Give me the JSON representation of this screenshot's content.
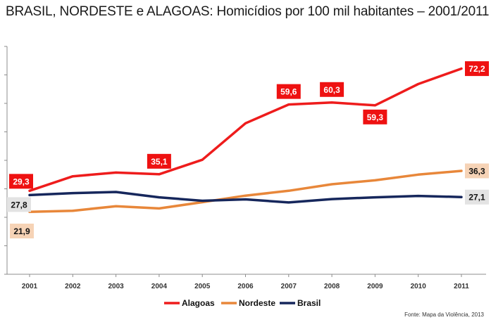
{
  "chart_data": {
    "type": "line",
    "title": "BRASIL, NORDESTE e ALAGOAS: Homicídios por 100 mil habitantes – 2001/2011",
    "source": "Fonte: Mapa da Violência, 2013",
    "categories": [
      "2001",
      "2002",
      "2003",
      "2004",
      "2005",
      "2006",
      "2007",
      "2008",
      "2009",
      "2010",
      "2011"
    ],
    "ylim": [
      0,
      80
    ],
    "grid": false,
    "legend_position": "bottom",
    "series": [
      {
        "name": "Alagoas",
        "color": "#ee1c1c",
        "values": [
          29.3,
          34.4,
          35.7,
          35.1,
          40.2,
          53.0,
          59.6,
          60.3,
          59.3,
          66.8,
          72.2
        ],
        "data_labels": [
          {
            "index": 0,
            "text": "29,3",
            "position": "above"
          },
          {
            "index": 3,
            "text": "35,1",
            "position": "above"
          },
          {
            "index": 6,
            "text": "59,6",
            "position": "above"
          },
          {
            "index": 7,
            "text": "60,3",
            "position": "above"
          },
          {
            "index": 8,
            "text": "59,3",
            "position": "below"
          },
          {
            "index": 10,
            "text": "72,2",
            "position": "right"
          }
        ]
      },
      {
        "name": "Nordeste",
        "color": "#e8873a",
        "values": [
          21.9,
          22.3,
          23.9,
          23.1,
          25.3,
          27.6,
          29.3,
          31.6,
          33.0,
          35.0,
          36.3
        ],
        "data_labels": [
          {
            "index": 0,
            "text": "21,9",
            "position": "below"
          },
          {
            "index": 10,
            "text": "36,3",
            "position": "right"
          }
        ]
      },
      {
        "name": "Brasil",
        "color": "#16275c",
        "values": [
          27.8,
          28.5,
          28.9,
          27.0,
          25.8,
          26.3,
          25.2,
          26.4,
          27.0,
          27.5,
          27.1
        ],
        "data_labels": [
          {
            "index": 0,
            "text": "27,8",
            "position": "left"
          },
          {
            "index": 10,
            "text": "27,1",
            "position": "right"
          }
        ]
      }
    ]
  }
}
